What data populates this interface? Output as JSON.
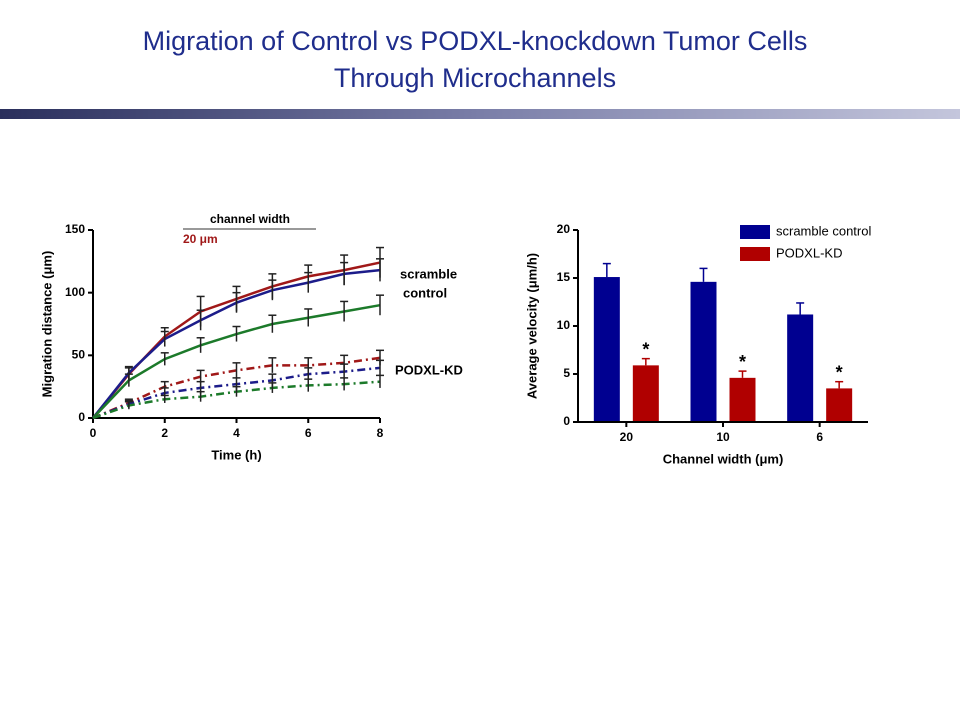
{
  "title": [
    "Migration of Control vs PODXL-knockdown Tumor Cells",
    "Through Microchannels"
  ],
  "chart_data": [
    {
      "type": "line",
      "ylabel": "Migration distance (μm)",
      "xlabel": "Time (h)",
      "x": [
        0,
        1,
        2,
        3,
        4,
        5,
        6,
        7,
        8
      ],
      "xlim": [
        0,
        8
      ],
      "xticks": [
        0,
        2,
        4,
        6,
        8
      ],
      "ylim": [
        0,
        150
      ],
      "yticks": [
        0,
        50,
        100,
        150
      ],
      "annotations": {
        "header": "channel width",
        "width": "20 μm",
        "group1": [
          "scramble",
          "control"
        ],
        "group2": "PODXL-KD"
      },
      "series": [
        {
          "color": "#a01818",
          "style": "solid",
          "values": [
            0,
            35,
            65,
            85,
            95,
            105,
            113,
            118,
            124
          ],
          "errors": [
            0,
            5,
            7,
            12,
            10,
            10,
            9,
            12,
            12
          ]
        },
        {
          "color": "#1c1c8a",
          "style": "solid",
          "values": [
            0,
            36,
            63,
            78,
            92,
            102,
            108,
            115,
            118
          ],
          "errors": [
            0,
            5,
            6,
            8,
            8,
            8,
            8,
            9,
            9
          ]
        },
        {
          "color": "#1c7a2a",
          "style": "solid",
          "values": [
            0,
            30,
            47,
            58,
            67,
            75,
            80,
            85,
            90
          ],
          "errors": [
            0,
            5,
            5,
            6,
            6,
            7,
            7,
            8,
            8
          ]
        },
        {
          "color": "#a01818",
          "style": "dashed",
          "values": [
            0,
            12,
            25,
            33,
            38,
            42,
            42,
            44,
            48
          ],
          "errors": [
            0,
            3,
            4,
            5,
            6,
            6,
            6,
            6,
            6
          ]
        },
        {
          "color": "#1c1c8a",
          "style": "dashed",
          "values": [
            0,
            11,
            20,
            24,
            27,
            30,
            35,
            37,
            40
          ],
          "errors": [
            0,
            3,
            4,
            5,
            5,
            5,
            5,
            6,
            6
          ]
        },
        {
          "color": "#1c7a2a",
          "style": "dashed",
          "values": [
            0,
            10,
            15,
            17,
            21,
            24,
            26,
            27,
            29
          ],
          "errors": [
            0,
            3,
            3,
            4,
            4,
            4,
            5,
            5,
            5
          ]
        }
      ]
    },
    {
      "type": "bar",
      "ylabel": "Average velocity (μm/h)",
      "xlabel": "Channel width (μm)",
      "categories": [
        "20",
        "10",
        "6"
      ],
      "ylim": [
        0,
        20
      ],
      "yticks": [
        0,
        5,
        10,
        15,
        20
      ],
      "legend": "upper right",
      "series": [
        {
          "name": "scramble control",
          "color": "#000090",
          "values": [
            15.1,
            14.6,
            11.2
          ],
          "errors": [
            1.4,
            1.4,
            1.2
          ]
        },
        {
          "name": "PODXL-KD",
          "color": "#b00000",
          "values": [
            5.9,
            4.6,
            3.5
          ],
          "errors": [
            0.7,
            0.7,
            0.7
          ],
          "annotations": [
            "*",
            "*",
            "*"
          ]
        }
      ]
    }
  ]
}
